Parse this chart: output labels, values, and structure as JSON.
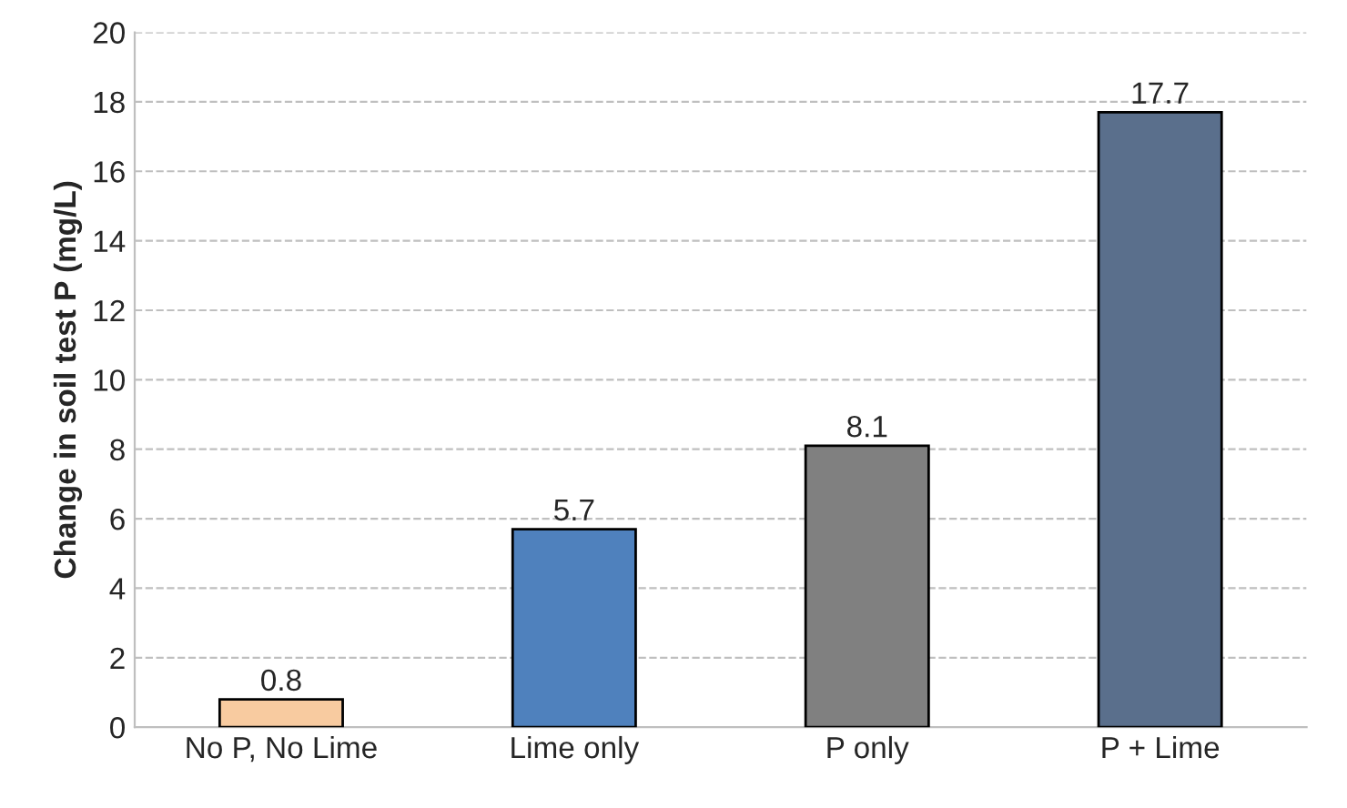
{
  "chart_data": {
    "type": "bar",
    "ylabel": "Change in soil test P (mg/L)",
    "categories": [
      "No P, No Lime",
      "Lime only",
      "P only",
      "P + Lime"
    ],
    "values": [
      0.8,
      5.7,
      8.1,
      17.7
    ],
    "colors": [
      "#f8cba0",
      "#4f81bd",
      "#808080",
      "#5a6f8c"
    ],
    "ylim": [
      0,
      20
    ],
    "yticks": [
      0,
      2,
      4,
      6,
      8,
      10,
      12,
      14,
      16,
      18,
      20
    ],
    "grid": "y",
    "data_labels": true
  }
}
